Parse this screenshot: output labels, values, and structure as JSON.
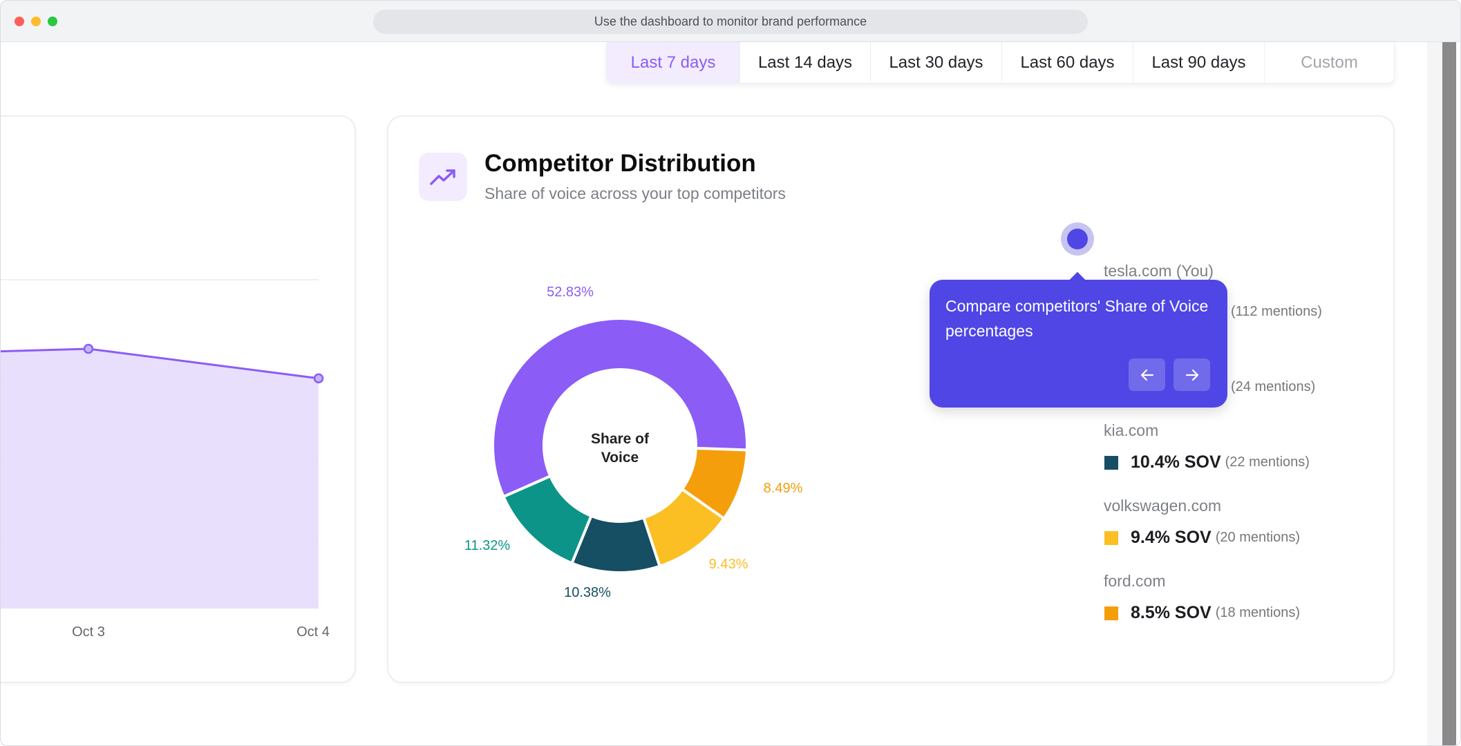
{
  "browser": {
    "url_text": "Use the dashboard to monitor brand performance"
  },
  "date_tabs": [
    {
      "label": "Last 7 days",
      "active": true
    },
    {
      "label": "Last 14 days"
    },
    {
      "label": "Last 30 days"
    },
    {
      "label": "Last 60 days"
    },
    {
      "label": "Last 90 days"
    },
    {
      "label": "Custom"
    }
  ],
  "competitor_card": {
    "icon": "trending-up-icon",
    "title": "Competitor Distribution",
    "subtitle": "Share of voice across your top competitors",
    "donut_center": [
      "Share of",
      "Voice"
    ],
    "legend": [
      {
        "name": "tesla.com (You)",
        "sov": "",
        "mentions": "(112 mentions)",
        "color": "#8b5cf6"
      },
      {
        "name": "",
        "sov": "",
        "mentions": "(24 mentions)",
        "color": "#0d9488"
      },
      {
        "name": "kia.com",
        "sov": "10.4% SOV",
        "mentions": "(22 mentions)",
        "color": "#164e63"
      },
      {
        "name": "volkswagen.com",
        "sov": "9.4% SOV",
        "mentions": "(20 mentions)",
        "color": "#fbbf24"
      },
      {
        "name": "ford.com",
        "sov": "8.5% SOV",
        "mentions": "(18 mentions)",
        "color": "#f59e0b"
      }
    ]
  },
  "tooltip": {
    "text": "Compare competitors' Share of Voice percentages",
    "prev": "arrow-left-icon",
    "next": "arrow-right-icon",
    "bg": "#4f46e5"
  },
  "chart_data": [
    {
      "type": "pie",
      "title": "Share of Voice",
      "labels": [
        "tesla.com (You)",
        "",
        "kia.com",
        "volkswagen.com",
        "ford.com"
      ],
      "values": [
        52.83,
        11.32,
        10.38,
        9.43,
        8.49
      ],
      "value_labels": [
        "52.83%",
        "11.32%",
        "10.38%",
        "9.43%",
        "8.49%"
      ],
      "colors": [
        "#8b5cf6",
        "#0d9488",
        "#164e63",
        "#fbbf24",
        "#f59e0b"
      ]
    },
    {
      "type": "area",
      "categories": [
        "",
        "Oct 3",
        "Oct 4"
      ],
      "values": [
        77,
        79,
        70
      ],
      "ylim": [
        0,
        100
      ],
      "color": "#8b5cf6",
      "fill": "#e6dcfd"
    }
  ]
}
